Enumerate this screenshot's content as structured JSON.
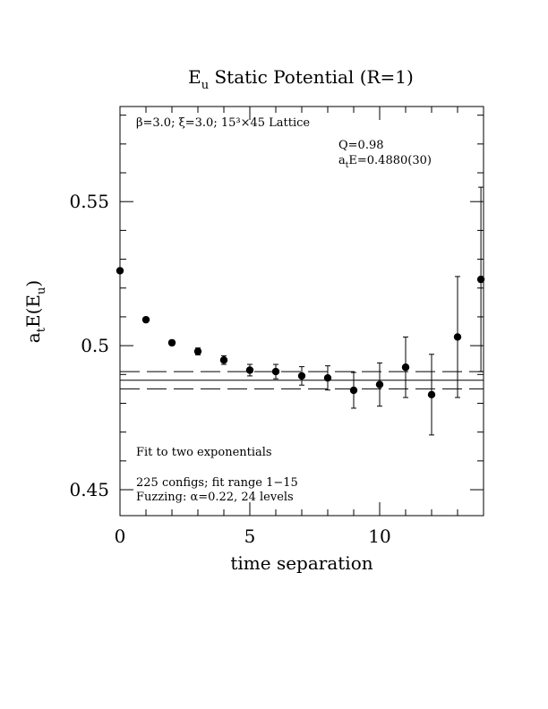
{
  "chart_data": {
    "type": "scatter",
    "title": {
      "main": "E",
      "sub": "u",
      "rest": " Static Potential (R=1)"
    },
    "xlabel": "time separation",
    "ylabel": {
      "a": "a",
      "a_sub": "t",
      "mid": "E(E",
      "e_sub": "u",
      "close": ")"
    },
    "xlim": [
      0,
      14
    ],
    "ylim": [
      0.441,
      0.583
    ],
    "x_ticks": [
      {
        "value": 0,
        "label": "0"
      },
      {
        "value": 5,
        "label": "5"
      },
      {
        "value": 10,
        "label": "10"
      }
    ],
    "y_ticks": [
      {
        "value": 0.45,
        "label": "0.45"
      },
      {
        "value": 0.5,
        "label": "0.5"
      },
      {
        "value": 0.55,
        "label": "0.55"
      }
    ],
    "minor_x_step": 1,
    "minor_y_step": 0.01,
    "points": [
      {
        "x": 0,
        "y": 0.526,
        "err": 0.0008
      },
      {
        "x": 1,
        "y": 0.509,
        "err": 0.0008
      },
      {
        "x": 2,
        "y": 0.501,
        "err": 0.0009
      },
      {
        "x": 3,
        "y": 0.498,
        "err": 0.0012
      },
      {
        "x": 4,
        "y": 0.495,
        "err": 0.0015
      },
      {
        "x": 5,
        "y": 0.4915,
        "err": 0.002
      },
      {
        "x": 6,
        "y": 0.491,
        "err": 0.0025
      },
      {
        "x": 7,
        "y": 0.4895,
        "err": 0.0032
      },
      {
        "x": 8,
        "y": 0.4888,
        "err": 0.0042
      },
      {
        "x": 9,
        "y": 0.4845,
        "err": 0.0062
      },
      {
        "x": 10,
        "y": 0.4865,
        "err": 0.0075
      },
      {
        "x": 11,
        "y": 0.4925,
        "err": 0.0105
      },
      {
        "x": 12,
        "y": 0.483,
        "err": 0.014
      },
      {
        "x": 13,
        "y": 0.503,
        "err": 0.021
      },
      {
        "x": 13.9,
        "y": 0.523,
        "err": 0.032
      }
    ],
    "fit": {
      "value": 0.488,
      "error": 0.003,
      "x_range": [
        0,
        14
      ]
    },
    "annotations": {
      "lattice": "β=3.0; ξ=3.0; 15³×45 Lattice",
      "q_value": "Q=0.98",
      "energy": {
        "a": "a",
        "sub": "t",
        "rest": "E=0.4880(30)"
      },
      "method": "Fit to two exponentials",
      "configs": "225 configs; fit range 1−15",
      "fuzzing": "Fuzzing: α=0.22, 24 levels"
    }
  }
}
